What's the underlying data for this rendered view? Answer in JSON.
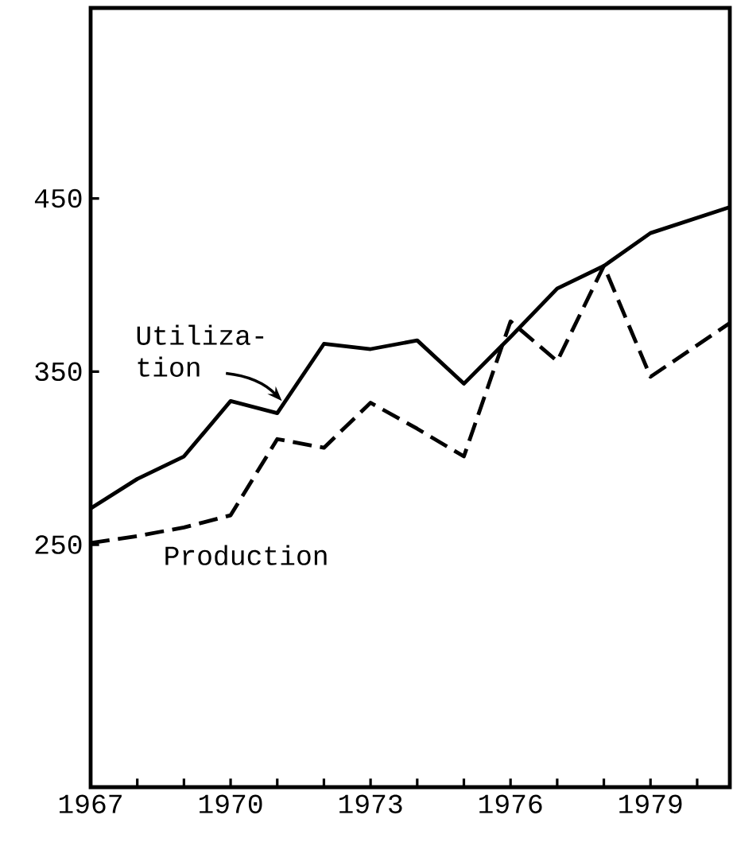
{
  "chart_data": {
    "type": "line",
    "x": [
      1967,
      1968,
      1969,
      1970,
      1971,
      1972,
      1973,
      1974,
      1975,
      1976,
      1977,
      1978,
      1979,
      1980.7
    ],
    "series": [
      {
        "name": "Utiliza-tion",
        "color": "#000000",
        "line_style": "solid",
        "values": [
          271,
          288,
          301,
          333,
          326,
          366,
          363,
          368,
          343,
          370,
          398,
          411,
          430,
          445
        ]
      },
      {
        "name": "Production",
        "color": "#000000",
        "line_style": "dashed",
        "values": [
          251,
          255,
          260,
          267,
          311,
          306,
          332,
          317,
          301,
          379,
          356,
          411,
          347,
          378
        ]
      }
    ],
    "xlim": [
      1967,
      1980.7
    ],
    "ylim": [
      110,
      560
    ],
    "xticks": [
      1967,
      {
        "value": 1968,
        "label": null
      },
      {
        "value": 1969,
        "label": null
      },
      1970,
      {
        "value": 1971,
        "label": null
      },
      {
        "value": 1972,
        "label": null
      },
      1973,
      {
        "value": 1974,
        "label": null
      },
      {
        "value": 1975,
        "label": null
      },
      1976,
      {
        "value": 1977,
        "label": null
      },
      {
        "value": 1978,
        "label": null
      },
      1979,
      {
        "value": 1980,
        "label": null
      }
    ],
    "yticks": [
      250,
      350,
      450
    ],
    "grid": false,
    "legend": false
  }
}
